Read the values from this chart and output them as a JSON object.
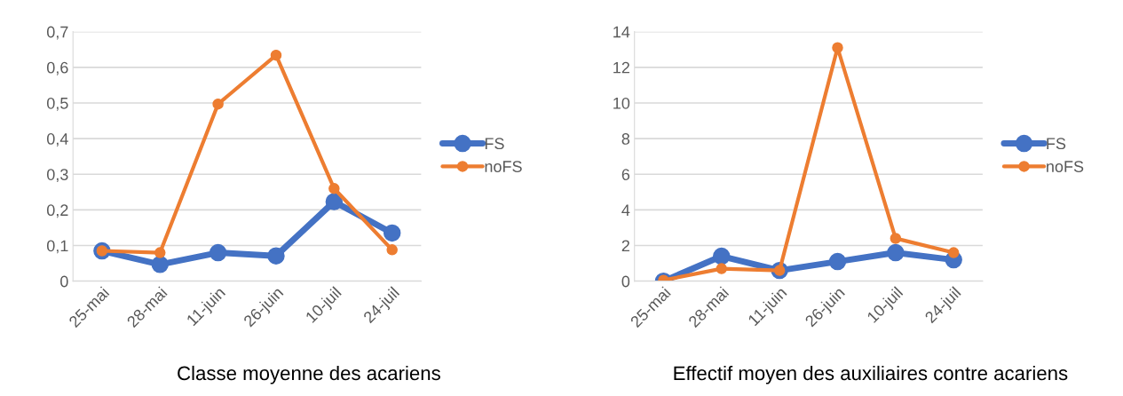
{
  "chart_data": [
    {
      "type": "line",
      "categories": [
        "25-mai",
        "28-mai",
        "11-juin",
        "26-juin",
        "10-juil",
        "24-juil"
      ],
      "series": [
        {
          "name": "FS",
          "color": "#4472c4",
          "values": [
            0.085,
            0.047,
            0.08,
            0.071,
            0.223,
            0.135
          ]
        },
        {
          "name": "noFS",
          "color": "#ed7d31",
          "values": [
            0.085,
            0.08,
            0.497,
            0.634,
            0.26,
            0.088
          ]
        }
      ],
      "ylim": [
        0,
        0.7
      ],
      "yticks": [
        0,
        {
          "value": 0.1,
          "label": "0,1"
        },
        {
          "value": 0.2,
          "label": "0,2"
        },
        {
          "value": 0.3,
          "label": "0,3"
        },
        {
          "value": 0.4,
          "label": "0,4"
        },
        {
          "value": 0.5,
          "label": "0,5"
        },
        {
          "value": 0.6,
          "label": "0,6"
        },
        {
          "value": 0.7,
          "label": "0,7"
        }
      ],
      "grid": "y",
      "legend": "right",
      "marker": "circle",
      "line_style": "solid",
      "annotations": [
        "Classe moyenne des acariens"
      ]
    },
    {
      "type": "line",
      "categories": [
        "25-mai",
        "28-mai",
        "11-juin",
        "26-juin",
        "10-juil",
        "24-juil"
      ],
      "series": [
        {
          "name": "FS",
          "color": "#4472c4",
          "values": [
            0,
            1.4,
            0.6,
            1.1,
            1.6,
            1.2
          ]
        },
        {
          "name": "noFS",
          "color": "#ed7d31",
          "values": [
            0.05,
            0.7,
            0.6,
            13.1,
            2.4,
            1.6
          ]
        }
      ],
      "ylim": [
        0,
        14
      ],
      "yticks": [
        0,
        2,
        4,
        6,
        8,
        10,
        12,
        14
      ],
      "grid": "y",
      "legend": "right",
      "marker": "circle",
      "line_style": "solid",
      "annotations": [
        "Effectif moyen des auxiliaires contre acariens"
      ]
    }
  ]
}
